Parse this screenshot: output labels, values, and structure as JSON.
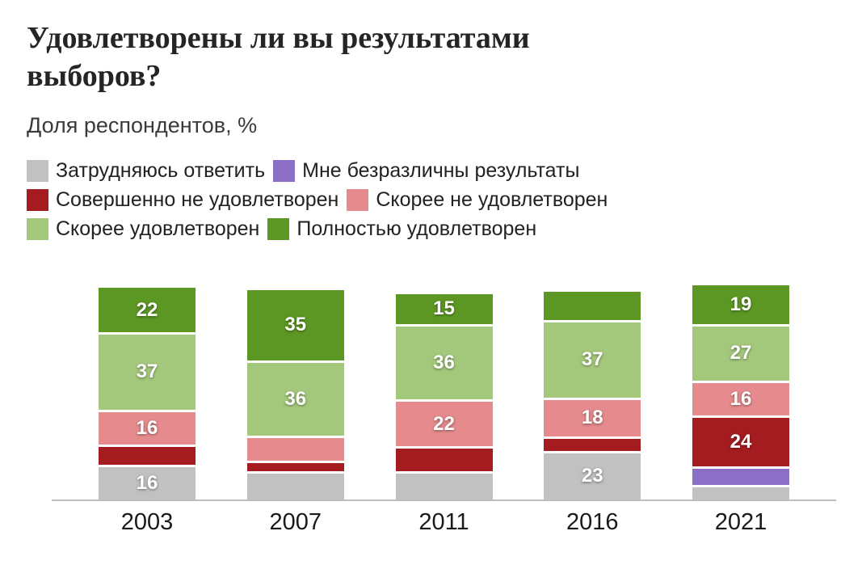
{
  "header": {
    "title_line1": "Удовлетворены ли вы результатами",
    "title_line2": "выборов?",
    "subtitle": "Доля респондентов, %"
  },
  "chart_data": {
    "type": "bar",
    "stacked": true,
    "title": "Удовлетворены ли вы результатами выборов?",
    "subtitle": "Доля респондентов, %",
    "unit": "%",
    "ylim": [
      0,
      100
    ],
    "grid": false,
    "legend_position": "top",
    "categories": [
      "2003",
      "2007",
      "2011",
      "2016",
      "2021"
    ],
    "series": [
      {
        "name": "Затрудняюсь ответить",
        "color": "#c1c1c1",
        "values": [
          16,
          13,
          13,
          23,
          6
        ],
        "labels": [
          "16",
          null,
          null,
          "23",
          null
        ]
      },
      {
        "name": "Мне безразличны результаты",
        "color": "#8b6fc7",
        "values": [
          0,
          0,
          0,
          0,
          8
        ],
        "labels": [
          null,
          null,
          null,
          null,
          null
        ]
      },
      {
        "name": "Совершенно не удовлетворен",
        "color": "#a41c20",
        "values": [
          9,
          4,
          11,
          6,
          24
        ],
        "labels": [
          null,
          null,
          null,
          null,
          "24"
        ]
      },
      {
        "name": "Скорее не удовлетворен",
        "color": "#e58b8d",
        "values": [
          16,
          11,
          22,
          18,
          16
        ],
        "labels": [
          "16",
          null,
          "22",
          "18",
          "16"
        ]
      },
      {
        "name": "Скорее удовлетворен",
        "color": "#a4c87b",
        "values": [
          37,
          36,
          36,
          37,
          27
        ],
        "labels": [
          "37",
          "36",
          "36",
          "37",
          "27"
        ]
      },
      {
        "name": "Полностью удовлетворен",
        "color": "#5c9723",
        "values": [
          22,
          35,
          15,
          14,
          19
        ],
        "labels": [
          "22",
          "35",
          "15",
          null,
          "19"
        ]
      }
    ]
  }
}
